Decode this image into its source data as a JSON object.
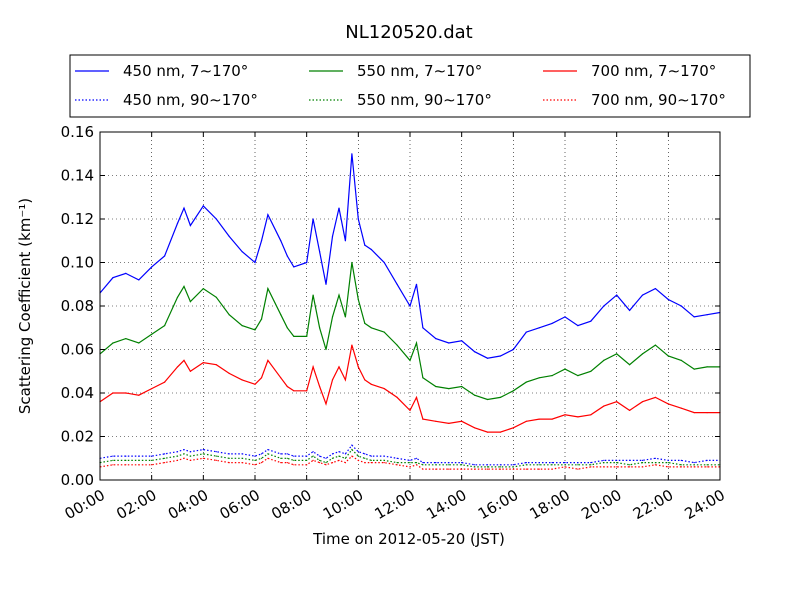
{
  "chart_data": {
    "type": "line",
    "title": "NL120520.dat",
    "xlabel": "Time on 2012-05-20 (JST)",
    "ylabel": "Scattering Coefficient (km⁻¹)",
    "xlim": [
      0,
      24
    ],
    "ylim": [
      0,
      0.16
    ],
    "x_ticks": [
      "00:00",
      "02:00",
      "04:00",
      "06:00",
      "08:00",
      "10:00",
      "12:00",
      "14:00",
      "16:00",
      "18:00",
      "20:00",
      "22:00",
      "24:00"
    ],
    "y_ticks": [
      "0.00",
      "0.02",
      "0.04",
      "0.06",
      "0.08",
      "0.10",
      "0.12",
      "0.14",
      "0.16"
    ],
    "grid": true,
    "legend_position": "top",
    "x": [
      0,
      0.5,
      1,
      1.5,
      2,
      2.5,
      3,
      3.25,
      3.5,
      4,
      4.5,
      5,
      5.5,
      6,
      6.25,
      6.5,
      7,
      7.25,
      7.5,
      8,
      8.25,
      8.5,
      8.75,
      9,
      9.25,
      9.5,
      9.75,
      10,
      10.25,
      10.5,
      11,
      11.5,
      12,
      12.25,
      12.5,
      13,
      13.5,
      14,
      14.5,
      15,
      15.5,
      16,
      16.5,
      17,
      17.5,
      18,
      18.5,
      19,
      19.5,
      20,
      20.5,
      21,
      21.5,
      22,
      22.5,
      23,
      23.5,
      24
    ],
    "series": [
      {
        "name": "450 nm, 7∼170°",
        "color": "#0000ff",
        "style": "solid",
        "values": [
          0.086,
          0.093,
          0.095,
          0.092,
          0.098,
          0.103,
          0.118,
          0.125,
          0.117,
          0.126,
          0.12,
          0.112,
          0.105,
          0.1,
          0.11,
          0.122,
          0.11,
          0.103,
          0.098,
          0.1,
          0.12,
          0.105,
          0.09,
          0.112,
          0.125,
          0.11,
          0.15,
          0.12,
          0.108,
          0.106,
          0.1,
          0.09,
          0.08,
          0.09,
          0.07,
          0.065,
          0.063,
          0.064,
          0.059,
          0.056,
          0.057,
          0.06,
          0.068,
          0.07,
          0.072,
          0.075,
          0.071,
          0.073,
          0.08,
          0.085,
          0.078,
          0.085,
          0.088,
          0.083,
          0.08,
          0.075,
          0.076,
          0.077
        ]
      },
      {
        "name": "550 nm, 7∼170°",
        "color": "#008000",
        "style": "solid",
        "values": [
          0.058,
          0.063,
          0.065,
          0.063,
          0.067,
          0.071,
          0.084,
          0.089,
          0.082,
          0.088,
          0.084,
          0.076,
          0.071,
          0.069,
          0.074,
          0.088,
          0.076,
          0.07,
          0.066,
          0.066,
          0.085,
          0.07,
          0.06,
          0.075,
          0.085,
          0.075,
          0.1,
          0.083,
          0.072,
          0.07,
          0.068,
          0.062,
          0.055,
          0.063,
          0.047,
          0.043,
          0.042,
          0.043,
          0.039,
          0.037,
          0.038,
          0.041,
          0.045,
          0.047,
          0.048,
          0.051,
          0.048,
          0.05,
          0.055,
          0.058,
          0.053,
          0.058,
          0.062,
          0.057,
          0.055,
          0.051,
          0.052,
          0.052
        ]
      },
      {
        "name": "700 nm, 7∼170°",
        "color": "#ff0000",
        "style": "solid",
        "values": [
          0.036,
          0.04,
          0.04,
          0.039,
          0.042,
          0.045,
          0.052,
          0.055,
          0.05,
          0.054,
          0.053,
          0.049,
          0.046,
          0.044,
          0.047,
          0.055,
          0.047,
          0.043,
          0.041,
          0.041,
          0.052,
          0.043,
          0.035,
          0.046,
          0.052,
          0.046,
          0.062,
          0.052,
          0.046,
          0.044,
          0.042,
          0.038,
          0.032,
          0.038,
          0.028,
          0.027,
          0.026,
          0.027,
          0.024,
          0.022,
          0.022,
          0.024,
          0.027,
          0.028,
          0.028,
          0.03,
          0.029,
          0.03,
          0.034,
          0.036,
          0.032,
          0.036,
          0.038,
          0.035,
          0.033,
          0.031,
          0.031,
          0.031
        ]
      },
      {
        "name": "450 nm, 90∼170°",
        "color": "#0000ff",
        "style": "dotted",
        "values": [
          0.01,
          0.011,
          0.011,
          0.011,
          0.011,
          0.012,
          0.013,
          0.014,
          0.013,
          0.014,
          0.013,
          0.012,
          0.012,
          0.011,
          0.012,
          0.014,
          0.012,
          0.012,
          0.011,
          0.011,
          0.013,
          0.011,
          0.01,
          0.012,
          0.013,
          0.012,
          0.016,
          0.013,
          0.012,
          0.011,
          0.011,
          0.01,
          0.009,
          0.01,
          0.008,
          0.008,
          0.008,
          0.008,
          0.007,
          0.007,
          0.007,
          0.007,
          0.008,
          0.008,
          0.008,
          0.008,
          0.008,
          0.008,
          0.009,
          0.009,
          0.009,
          0.009,
          0.01,
          0.009,
          0.009,
          0.008,
          0.009,
          0.009
        ]
      },
      {
        "name": "550 nm, 90∼170°",
        "color": "#008000",
        "style": "dotted",
        "values": [
          0.008,
          0.009,
          0.009,
          0.009,
          0.009,
          0.01,
          0.011,
          0.012,
          0.011,
          0.012,
          0.011,
          0.01,
          0.01,
          0.009,
          0.01,
          0.012,
          0.01,
          0.01,
          0.009,
          0.009,
          0.011,
          0.009,
          0.008,
          0.01,
          0.011,
          0.01,
          0.014,
          0.011,
          0.01,
          0.009,
          0.009,
          0.008,
          0.008,
          0.008,
          0.007,
          0.007,
          0.007,
          0.007,
          0.006,
          0.006,
          0.006,
          0.006,
          0.007,
          0.007,
          0.007,
          0.007,
          0.007,
          0.007,
          0.008,
          0.008,
          0.007,
          0.008,
          0.008,
          0.008,
          0.007,
          0.007,
          0.007,
          0.007
        ]
      },
      {
        "name": "700 nm, 90∼170°",
        "color": "#ff0000",
        "style": "dotted",
        "values": [
          0.006,
          0.007,
          0.007,
          0.007,
          0.007,
          0.008,
          0.009,
          0.01,
          0.009,
          0.01,
          0.009,
          0.008,
          0.008,
          0.007,
          0.008,
          0.01,
          0.008,
          0.008,
          0.007,
          0.007,
          0.009,
          0.008,
          0.007,
          0.008,
          0.009,
          0.008,
          0.011,
          0.009,
          0.008,
          0.008,
          0.008,
          0.007,
          0.006,
          0.007,
          0.005,
          0.005,
          0.005,
          0.005,
          0.005,
          0.005,
          0.005,
          0.005,
          0.005,
          0.005,
          0.005,
          0.006,
          0.005,
          0.006,
          0.006,
          0.006,
          0.006,
          0.006,
          0.007,
          0.006,
          0.006,
          0.006,
          0.006,
          0.006
        ]
      }
    ]
  }
}
